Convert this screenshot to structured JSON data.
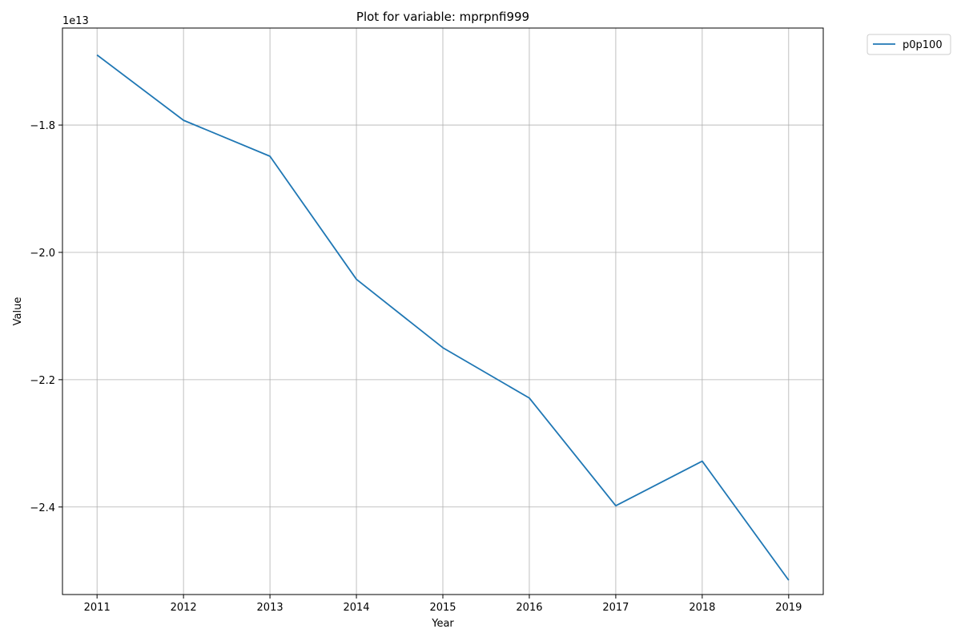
{
  "chart_data": {
    "type": "line",
    "title": "Plot for variable: mprpnfi999",
    "xlabel": "Year",
    "ylabel": "Value",
    "offset_label": "1e13",
    "x": [
      2011,
      2012,
      2013,
      2014,
      2015,
      2016,
      2017,
      2018,
      2019
    ],
    "x_tick_labels": [
      "2011",
      "2012",
      "2013",
      "2014",
      "2015",
      "2016",
      "2017",
      "2018",
      "2019"
    ],
    "xlim": [
      2010.6,
      2019.4
    ],
    "ylim": [
      -2.5375,
      -1.6476
    ],
    "y_ticks": [
      -1.8,
      -2.0,
      -2.2,
      -2.4
    ],
    "y_tick_labels": [
      "−1.8",
      "−2.0",
      "−2.2",
      "−2.4"
    ],
    "grid": true,
    "legend_position": "outside top-right",
    "series": [
      {
        "name": "p0p100",
        "color": "#1f77b4",
        "values": [
          -1.6899,
          -1.7925,
          -1.849,
          -2.0423,
          -2.1498,
          -2.2288,
          -2.398,
          -2.328,
          -2.515
        ]
      }
    ]
  }
}
